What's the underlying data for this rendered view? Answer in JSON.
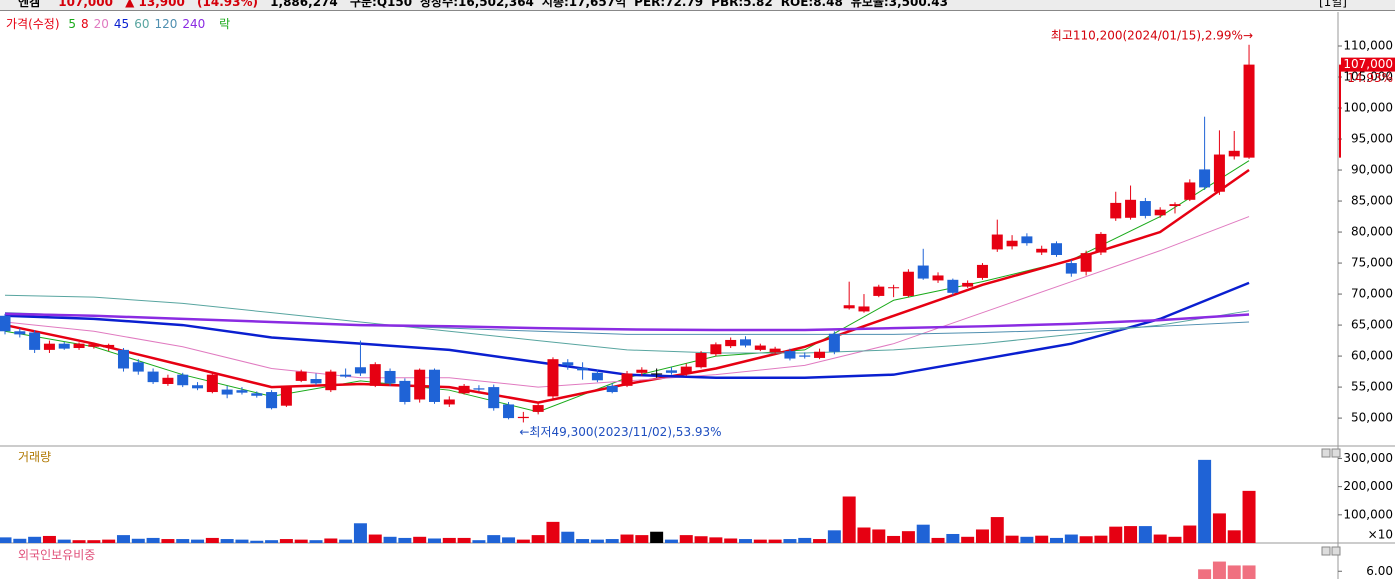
{
  "header": {
    "name": "엔켐",
    "price": "107,000",
    "change": "▲ 13,900",
    "change_pct": "(14.93%)",
    "volume": "1,886,274",
    "items": [
      "구분:Q150",
      "상장수:16,502,364",
      "시총:17,657억",
      "PER:72.79",
      "PBR:5.82",
      "ROE:8.48",
      "유보율:3,500.43"
    ],
    "period": "[1일]"
  },
  "chart_data": [
    {
      "type": "candlestick",
      "legend_label": "가격(수정)",
      "legend_tail": "락",
      "open": [
        66500,
        64000,
        63800,
        61000,
        62000,
        61300,
        61500,
        61400,
        61000,
        59000,
        57500,
        55500,
        57000,
        55300,
        54200,
        54600,
        54500,
        54000,
        54200,
        52000,
        56000,
        56300,
        54500,
        57000,
        58200,
        55200,
        57600,
        56000,
        53000,
        57800,
        52200,
        54000,
        54800,
        55000,
        52200,
        50000,
        51000,
        53500,
        59000,
        58100,
        57300,
        55200,
        55200,
        57300,
        57200,
        57700,
        57200,
        58200,
        60300,
        61600,
        62700,
        61000,
        60600,
        60800,
        60100,
        59700,
        63600,
        67700,
        67200,
        69700,
        71000,
        69700,
        74600,
        72200,
        72300,
        71200,
        72600,
        77200,
        77700,
        79300,
        76700,
        78200,
        75000,
        73600,
        76700,
        82200,
        82300,
        85000,
        82700,
        84200,
        85200,
        90100,
        86500,
        92200,
        92000
      ],
      "high": [
        66800,
        64500,
        64200,
        62500,
        62300,
        62200,
        62200,
        62000,
        61300,
        59500,
        58000,
        57000,
        57300,
        55800,
        57300,
        55200,
        55000,
        54300,
        54500,
        55200,
        57800,
        57200,
        57800,
        58000,
        62500,
        59000,
        58000,
        56400,
        58000,
        58000,
        53500,
        55500,
        55300,
        55400,
        52600,
        51000,
        52600,
        59800,
        59500,
        59000,
        57800,
        55600,
        57600,
        58200,
        58000,
        58200,
        58800,
        60800,
        62200,
        63000,
        63200,
        62000,
        61500,
        61200,
        60600,
        61200,
        64000,
        72000,
        70000,
        71500,
        71500,
        74000,
        77300,
        73500,
        72500,
        72200,
        75000,
        82000,
        79500,
        79800,
        77800,
        78500,
        75500,
        77000,
        80000,
        86500,
        87500,
        85500,
        84000,
        84800,
        88500,
        98600,
        96400,
        96300,
        110200
      ],
      "low": [
        63500,
        63000,
        60500,
        60500,
        61000,
        61000,
        61200,
        60800,
        57500,
        57000,
        55500,
        55200,
        55000,
        54500,
        54000,
        53200,
        53800,
        53300,
        51400,
        51800,
        55800,
        55300,
        54200,
        56500,
        56800,
        55000,
        55200,
        52200,
        52500,
        52300,
        51800,
        53800,
        54300,
        51200,
        49800,
        49300,
        50600,
        53000,
        57800,
        56200,
        55800,
        54000,
        55000,
        56800,
        56500,
        57000,
        56800,
        58000,
        60000,
        61300,
        61400,
        60800,
        60300,
        59300,
        59600,
        59500,
        60300,
        67500,
        67000,
        69500,
        69500,
        69500,
        72300,
        71800,
        69800,
        71000,
        72300,
        76800,
        77200,
        77800,
        76300,
        76000,
        72800,
        73000,
        76300,
        81800,
        82000,
        82200,
        82300,
        83000,
        85000,
        86800,
        86000,
        91700,
        91800
      ],
      "close": [
        64000,
        63500,
        61000,
        62000,
        61200,
        62000,
        61900,
        61800,
        58000,
        57500,
        55800,
        56500,
        55300,
        54800,
        57000,
        53800,
        54100,
        53600,
        51600,
        55000,
        57500,
        55600,
        57500,
        56700,
        57200,
        58700,
        55600,
        52600,
        57800,
        52600,
        53000,
        55200,
        54600,
        51600,
        50000,
        50200,
        52100,
        59500,
        58500,
        57700,
        56100,
        54200,
        57200,
        57800,
        57200,
        57300,
        58300,
        60500,
        61900,
        62600,
        61700,
        61700,
        61200,
        59600,
        59900,
        60700,
        60700,
        68200,
        68000,
        71200,
        71100,
        73600,
        72500,
        73000,
        70200,
        71800,
        74700,
        79600,
        78600,
        78200,
        77300,
        76300,
        73300,
        76600,
        79700,
        84700,
        85200,
        82600,
        83600,
        84500,
        88000,
        87200,
        92500,
        93100,
        107000
      ],
      "up_color": "#e60012",
      "down_color": "#1f63d6",
      "flat_color": "#000000",
      "ylim": [
        45500,
        115000
      ],
      "yticks": [
        {
          "value": 50000,
          "label": "50,000"
        },
        {
          "value": 55000,
          "label": "55,000"
        },
        {
          "value": 60000,
          "label": "60,000"
        },
        {
          "value": 65000,
          "label": "65,000"
        },
        {
          "value": 70000,
          "label": "70,000"
        },
        {
          "value": 75000,
          "label": "75,000"
        },
        {
          "value": 80000,
          "label": "80,000"
        },
        {
          "value": 85000,
          "label": "85,000"
        },
        {
          "value": 90000,
          "label": "90,000"
        },
        {
          "value": 95000,
          "label": "95,000"
        },
        {
          "value": 100000,
          "label": "100,000"
        },
        {
          "value": 105000,
          "label": "105,000"
        },
        {
          "value": 110000,
          "label": "110,000"
        }
      ],
      "ma_x": [
        0,
        6,
        12,
        18,
        24,
        30,
        36,
        42,
        48,
        54,
        60,
        66,
        72,
        78,
        84
      ],
      "series": [
        {
          "name": "5",
          "color": "#1aaa1a",
          "width": 1,
          "values": [
            64000,
            61500,
            57000,
            53500,
            56000,
            54500,
            51000,
            56500,
            60000,
            61000,
            69000,
            72000,
            75500,
            82500,
            91500
          ]
        },
        {
          "name": "8",
          "color": "#e60012",
          "width": 2.5,
          "values": [
            65000,
            62000,
            58500,
            55000,
            55500,
            55000,
            52500,
            55500,
            58000,
            61500,
            66500,
            71500,
            75500,
            80000,
            90000
          ]
        },
        {
          "name": "20",
          "color": "#e07ac0",
          "width": 1,
          "values": [
            65500,
            64000,
            61500,
            58000,
            56500,
            56500,
            55000,
            56000,
            57000,
            58500,
            62000,
            67000,
            72000,
            77000,
            82500
          ]
        },
        {
          "name": "45",
          "color": "#0a1fd0",
          "width": 2.5,
          "values": [
            66500,
            66000,
            65000,
            63000,
            62000,
            61000,
            59000,
            57000,
            56500,
            56500,
            57000,
            59500,
            62000,
            66000,
            71800
          ]
        },
        {
          "name": "60",
          "color": "#58a5a0",
          "width": 1,
          "values": [
            69800,
            69500,
            68500,
            67000,
            65500,
            64000,
            62500,
            61000,
            60500,
            60500,
            61000,
            62000,
            63500,
            65000,
            67300
          ]
        },
        {
          "name": "120",
          "color": "#4f8fb0",
          "width": 1,
          "values": [
            67000,
            66500,
            66000,
            65500,
            65000,
            64500,
            64000,
            63500,
            63500,
            63500,
            63500,
            63800,
            64200,
            64800,
            65500
          ]
        },
        {
          "name": "240",
          "color": "#8a2be2",
          "width": 2.5,
          "values": [
            66800,
            66500,
            66000,
            65500,
            65000,
            64800,
            64500,
            64300,
            64200,
            64200,
            64500,
            64800,
            65200,
            65800,
            66700
          ]
        }
      ],
      "annotations": {
        "high": "최고110,200(2024/01/15),2.99%→",
        "low": "←최저49,300(2023/11/02),53.93%"
      },
      "last_price_label": "107,000",
      "last_change_label": "14.93%"
    },
    {
      "type": "bar",
      "title": "거래량",
      "unit_note": "×10",
      "values": [
        20000,
        15000,
        22000,
        25000,
        12000,
        10000,
        10000,
        12000,
        28000,
        15000,
        18000,
        14000,
        14000,
        12000,
        18000,
        14000,
        12000,
        8000,
        10000,
        14000,
        12000,
        10000,
        16000,
        12000,
        70000,
        30000,
        22000,
        18000,
        22000,
        16000,
        18000,
        18000,
        10000,
        28000,
        20000,
        12000,
        28000,
        75000,
        40000,
        14000,
        12000,
        14000,
        30000,
        28000,
        40000,
        12000,
        28000,
        24000,
        20000,
        16000,
        14000,
        12000,
        12000,
        14000,
        18000,
        14000,
        45000,
        165000,
        55000,
        48000,
        25000,
        42000,
        65000,
        18000,
        32000,
        22000,
        48000,
        92000,
        26000,
        22000,
        26000,
        18000,
        30000,
        24000,
        26000,
        58000,
        60000,
        60000,
        30000,
        22000,
        62000,
        295000,
        105000,
        45000,
        185000
      ],
      "ylim": [
        0,
        330000
      ],
      "yticks": [
        {
          "value": 100000,
          "label": "100,000"
        },
        {
          "value": 200000,
          "label": "200,000"
        },
        {
          "value": 300000,
          "label": "300,000"
        }
      ]
    },
    {
      "type": "bar",
      "title": "외국인보유비중",
      "color": "#f07080",
      "x": [
        81,
        82,
        83,
        84
      ],
      "values": [
        6.05,
        6.25,
        6.15,
        6.15
      ],
      "ylim": [
        5.8,
        6.6
      ],
      "yticks": [
        {
          "value": 6,
          "label": "6.00"
        }
      ]
    }
  ]
}
